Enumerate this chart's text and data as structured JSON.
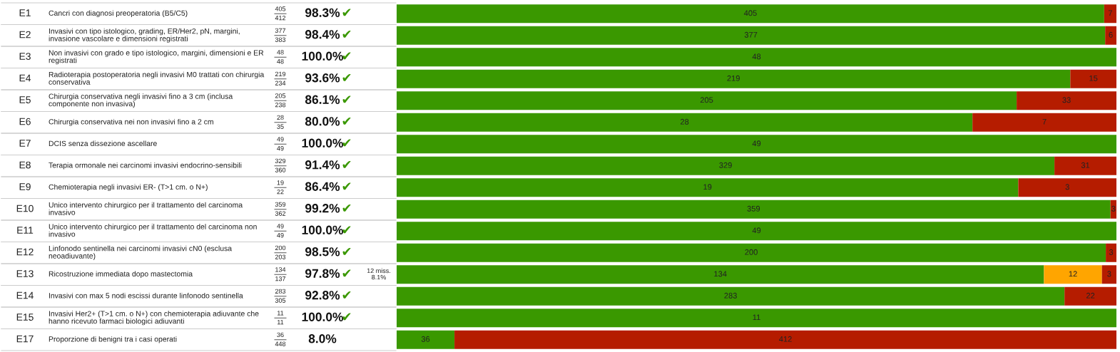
{
  "chart_data": [
    {
      "type": "bar",
      "orientation": "horizontal",
      "stacked": true,
      "data_labels": true,
      "categories": [
        "E1"
      ],
      "series": [
        {
          "color": "#3a9800",
          "values": [
            405
          ]
        },
        {
          "color": "#b51c00",
          "values": [
            7
          ]
        }
      ],
      "annotations": [
        "Cancri con diagnosi preoperatoria (B5/C5)",
        "405",
        "412",
        "98.3%",
        "✔"
      ]
    },
    {
      "type": "bar",
      "orientation": "horizontal",
      "stacked": true,
      "data_labels": true,
      "categories": [
        "E2"
      ],
      "series": [
        {
          "color": "#3a9800",
          "values": [
            377
          ]
        },
        {
          "color": "#b51c00",
          "values": [
            6
          ]
        }
      ],
      "annotations": [
        "Invasivi con tipo istologico, grading, ER/Her2, pN, margini,\ninvasione vascolare e dimensioni registrati",
        "377",
        "383",
        "98.4%",
        "✔"
      ]
    },
    {
      "type": "bar",
      "orientation": "horizontal",
      "stacked": true,
      "data_labels": true,
      "categories": [
        "E3"
      ],
      "series": [
        {
          "color": "#3a9800",
          "values": [
            48
          ]
        }
      ],
      "annotations": [
        "Non invasivi con grado e tipo istologico, margini, dimensioni e ER\nregistrati",
        "48",
        "48",
        "100.0%",
        "✔"
      ]
    },
    {
      "type": "bar",
      "orientation": "horizontal",
      "stacked": true,
      "data_labels": true,
      "categories": [
        "E4"
      ],
      "series": [
        {
          "color": "#3a9800",
          "values": [
            219
          ]
        },
        {
          "color": "#b51c00",
          "values": [
            15
          ]
        }
      ],
      "annotations": [
        "Radioterapia postoperatoria negli invasivi M0 trattati con chirurgia\nconservativa",
        "219",
        "234",
        "93.6%",
        "✔"
      ]
    },
    {
      "type": "bar",
      "orientation": "horizontal",
      "stacked": true,
      "data_labels": true,
      "categories": [
        "E5"
      ],
      "series": [
        {
          "color": "#3a9800",
          "values": [
            205
          ]
        },
        {
          "color": "#b51c00",
          "values": [
            33
          ]
        }
      ],
      "annotations": [
        "Chirurgia conservativa negli invasivi fino a 3 cm (inclusa\ncomponente non invasiva)",
        "205",
        "238",
        "86.1%",
        "✔"
      ]
    },
    {
      "type": "bar",
      "orientation": "horizontal",
      "stacked": true,
      "data_labels": true,
      "categories": [
        "E6"
      ],
      "series": [
        {
          "color": "#3a9800",
          "values": [
            28
          ]
        },
        {
          "color": "#b51c00",
          "values": [
            7
          ]
        }
      ],
      "annotations": [
        "Chirurgia conservativa nei non invasivi fino a 2 cm",
        "28",
        "35",
        "80.0%",
        "✔"
      ]
    },
    {
      "type": "bar",
      "orientation": "horizontal",
      "stacked": true,
      "data_labels": true,
      "categories": [
        "E7"
      ],
      "series": [
        {
          "color": "#3a9800",
          "values": [
            49
          ]
        }
      ],
      "annotations": [
        "DCIS senza dissezione ascellare",
        "49",
        "49",
        "100.0%",
        "✔"
      ]
    },
    {
      "type": "bar",
      "orientation": "horizontal",
      "stacked": true,
      "data_labels": true,
      "categories": [
        "E8"
      ],
      "series": [
        {
          "color": "#3a9800",
          "values": [
            329
          ]
        },
        {
          "color": "#b51c00",
          "values": [
            31
          ]
        }
      ],
      "annotations": [
        "Terapia ormonale nei carcinomi invasivi endocrino-sensibili",
        "329",
        "360",
        "91.4%",
        "✔"
      ]
    },
    {
      "type": "bar",
      "orientation": "horizontal",
      "stacked": true,
      "data_labels": true,
      "categories": [
        "E9"
      ],
      "series": [
        {
          "color": "#3a9800",
          "values": [
            19
          ]
        },
        {
          "color": "#b51c00",
          "values": [
            3
          ]
        }
      ],
      "annotations": [
        "Chemioterapia negli invasivi ER- (T>1 cm. o N+)",
        "19",
        "22",
        "86.4%",
        "✔"
      ]
    },
    {
      "type": "bar",
      "orientation": "horizontal",
      "stacked": true,
      "data_labels": true,
      "categories": [
        "E10"
      ],
      "series": [
        {
          "color": "#3a9800",
          "values": [
            359
          ]
        },
        {
          "color": "#b51c00",
          "values": [
            3
          ]
        }
      ],
      "annotations": [
        "Unico intervento chirurgico per il trattamento del carcinoma\ninvasivo",
        "359",
        "362",
        "99.2%",
        "✔"
      ]
    },
    {
      "type": "bar",
      "orientation": "horizontal",
      "stacked": true,
      "data_labels": true,
      "categories": [
        "E11"
      ],
      "series": [
        {
          "color": "#3a9800",
          "values": [
            49
          ]
        }
      ],
      "annotations": [
        "Unico intervento chirurgico per il trattamento del carcinoma non\ninvasivo",
        "49",
        "49",
        "100.0%",
        "✔"
      ]
    },
    {
      "type": "bar",
      "orientation": "horizontal",
      "stacked": true,
      "data_labels": true,
      "categories": [
        "E12"
      ],
      "series": [
        {
          "color": "#3a9800",
          "values": [
            200
          ]
        },
        {
          "color": "#b51c00",
          "values": [
            3
          ]
        }
      ],
      "annotations": [
        "Linfonodo sentinella nei carcinomi invasivi cN0 (esclusa\nneoadiuvante)",
        "200",
        "203",
        "98.5%",
        "✔"
      ]
    },
    {
      "type": "bar",
      "orientation": "horizontal",
      "stacked": true,
      "data_labels": true,
      "categories": [
        "E13"
      ],
      "series": [
        {
          "color": "#3a9800",
          "values": [
            134
          ]
        },
        {
          "color": "#ffa500",
          "values": [
            12
          ]
        },
        {
          "color": "#b51c00",
          "values": [
            3
          ]
        }
      ],
      "annotations": [
        "Ricostruzione immediata dopo mastectomia",
        "134",
        "137",
        "97.8%",
        "✔",
        "12 miss.\n8.1%"
      ]
    },
    {
      "type": "bar",
      "orientation": "horizontal",
      "stacked": true,
      "data_labels": true,
      "categories": [
        "E14"
      ],
      "series": [
        {
          "color": "#3a9800",
          "values": [
            283
          ]
        },
        {
          "color": "#b51c00",
          "values": [
            22
          ]
        }
      ],
      "annotations": [
        "Invasivi con max 5 nodi escissi durante linfonodo sentinella",
        "283",
        "305",
        "92.8%",
        "✔"
      ]
    },
    {
      "type": "bar",
      "orientation": "horizontal",
      "stacked": true,
      "data_labels": true,
      "categories": [
        "E15"
      ],
      "series": [
        {
          "color": "#3a9800",
          "values": [
            11
          ]
        }
      ],
      "annotations": [
        "Invasivi Her2+ (T>1 cm. o N+) con chemioterapia adiuvante che\nhanno ricevuto farmaci biologici adiuvanti",
        "11",
        "11",
        "100.0%",
        "✔"
      ]
    },
    {
      "type": "bar",
      "orientation": "horizontal",
      "stacked": true,
      "data_labels": true,
      "categories": [
        "E17"
      ],
      "series": [
        {
          "color": "#3a9800",
          "values": [
            36
          ]
        },
        {
          "color": "#b51c00",
          "values": [
            412
          ]
        }
      ],
      "annotations": [
        "Proporzione di benigni tra i casi operati",
        "36",
        "448",
        "8.0%"
      ]
    }
  ]
}
